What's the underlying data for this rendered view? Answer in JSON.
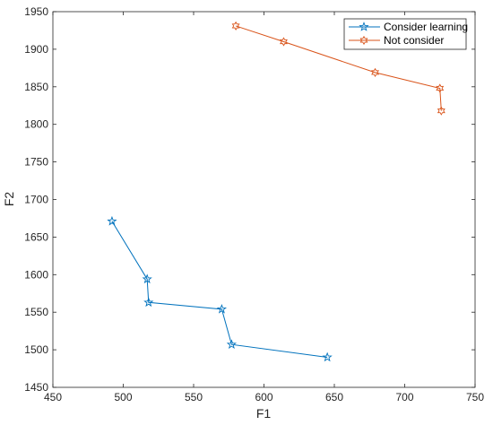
{
  "chart_data": {
    "type": "line",
    "xlabel": "F1",
    "ylabel": "F2",
    "xlim": [
      450,
      750
    ],
    "ylim": [
      1450,
      1950
    ],
    "xticks": [
      450,
      500,
      550,
      600,
      650,
      700,
      750
    ],
    "yticks": [
      1450,
      1500,
      1550,
      1600,
      1650,
      1700,
      1750,
      1800,
      1850,
      1900,
      1950
    ],
    "grid": false,
    "legend_position": "top-right",
    "series": [
      {
        "name": "Consider learning",
        "color": "#0072BD",
        "marker": "pentagram",
        "x": [
          492,
          517,
          518,
          570,
          577,
          645
        ],
        "y": [
          1671,
          1594,
          1563,
          1554,
          1507,
          1490
        ]
      },
      {
        "name": "Not consider",
        "color": "#D95319",
        "marker": "hexagram",
        "x": [
          580,
          614,
          679,
          725,
          726
        ],
        "y": [
          1931,
          1910,
          1869,
          1848,
          1818
        ]
      }
    ]
  }
}
